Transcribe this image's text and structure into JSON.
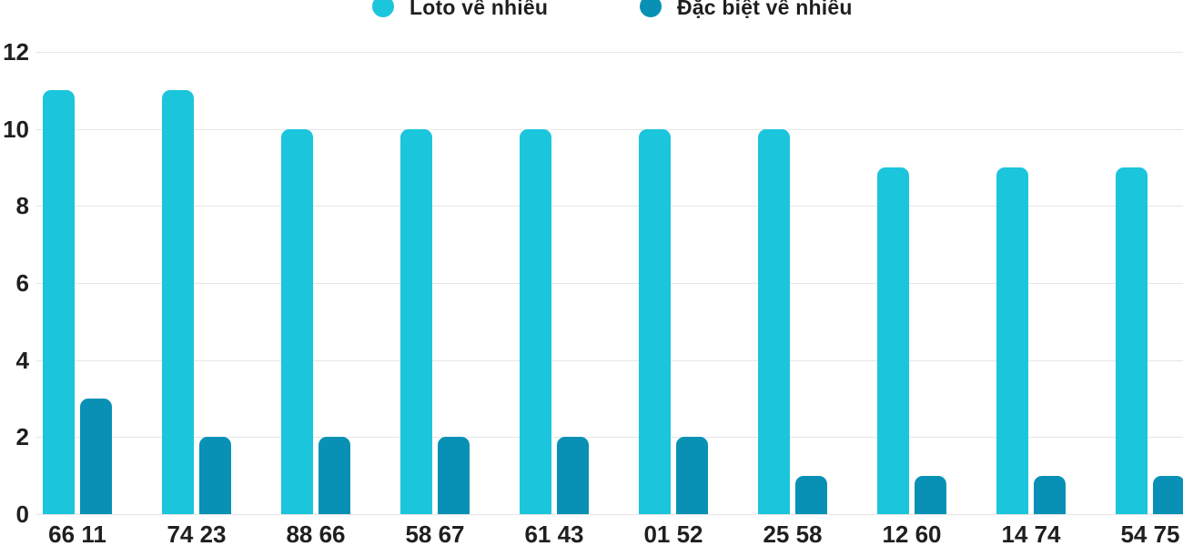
{
  "chart_data": {
    "type": "bar",
    "title": "",
    "xlabel": "",
    "ylabel": "",
    "categories": [
      "66 11",
      "74 23",
      "88 66",
      "58 67",
      "61 43",
      "01 52",
      "25 58",
      "12 60",
      "14 74",
      "54 75"
    ],
    "series": [
      {
        "name": "Loto về nhiều",
        "color": "#1BC5DC",
        "values": [
          11,
          11,
          10,
          10,
          10,
          10,
          10,
          9,
          9,
          9
        ]
      },
      {
        "name": "Đặc biệt về nhiều",
        "color": "#0991B5",
        "values": [
          3,
          2,
          2,
          2,
          2,
          2,
          1,
          1,
          1,
          1
        ]
      }
    ],
    "yticks": [
      0,
      2,
      4,
      6,
      8,
      10,
      12
    ],
    "ylim": [
      0,
      12
    ],
    "grid": true,
    "legend_position": "top",
    "colors": {
      "background": "#ffffff",
      "gridline": "#e6e6e6",
      "axis_text": "#1f1f1f"
    }
  }
}
